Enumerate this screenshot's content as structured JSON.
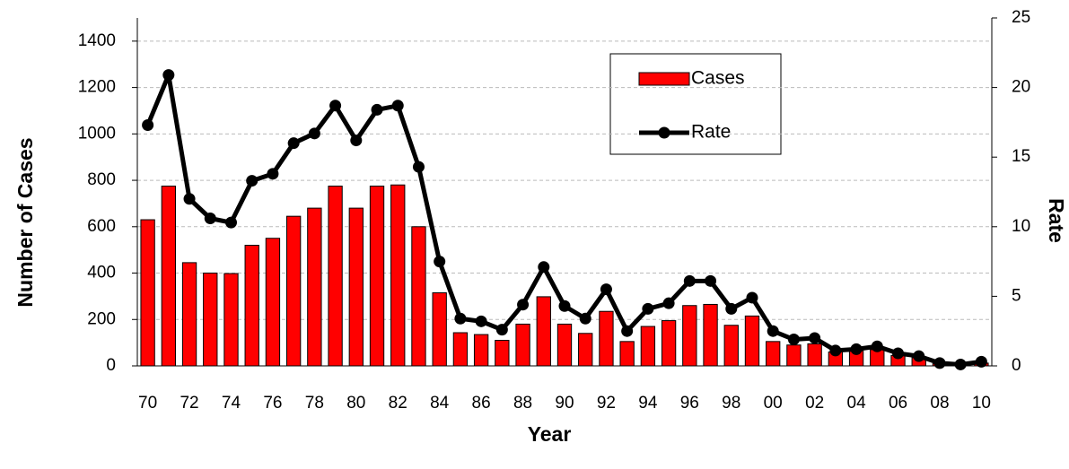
{
  "chart_data": {
    "type": "bar",
    "categories": [
      "70",
      null,
      "72",
      null,
      "74",
      null,
      "76",
      null,
      "78",
      null,
      "80",
      null,
      "82",
      null,
      "84",
      null,
      "86",
      null,
      "88",
      null,
      "90",
      null,
      "92",
      null,
      "94",
      null,
      "96",
      null,
      "98",
      null,
      "00",
      null,
      "02",
      null,
      "04",
      null,
      "06",
      null,
      "08",
      null,
      "10"
    ],
    "series": [
      {
        "name": "Cases",
        "type": "bar",
        "color": "#ff0000",
        "values": [
          630,
          775,
          445,
          400,
          398,
          520,
          550,
          645,
          680,
          775,
          680,
          775,
          780,
          600,
          315,
          143,
          135,
          110,
          180,
          298,
          180,
          140,
          235,
          105,
          170,
          195,
          260,
          265,
          175,
          215,
          105,
          90,
          95,
          60,
          65,
          70,
          45,
          35,
          10,
          8,
          12
        ]
      },
      {
        "name": "Rate",
        "type": "line",
        "color": "#000000",
        "axis": "y2",
        "values": [
          17.3,
          20.9,
          12.0,
          10.6,
          10.3,
          13.3,
          13.8,
          16.0,
          16.7,
          18.7,
          16.2,
          18.4,
          18.7,
          14.3,
          7.5,
          3.4,
          3.2,
          2.6,
          4.4,
          7.1,
          4.3,
          3.4,
          5.5,
          2.5,
          4.1,
          4.5,
          6.1,
          6.1,
          4.1,
          4.9,
          2.5,
          1.9,
          2.0,
          1.1,
          1.2,
          1.4,
          0.9,
          0.7,
          0.2,
          0.1,
          0.3
        ]
      }
    ],
    "ylim": [
      0,
      1500
    ],
    "yticks": [
      0,
      200,
      400,
      600,
      800,
      1000,
      1200,
      1400
    ],
    "y2lim": [
      0,
      25
    ],
    "y2ticks": [
      0,
      5,
      10,
      15,
      20,
      25
    ],
    "y_label": "Number of Cases",
    "y2_label": "Rate",
    "x_label": "Year",
    "grid": true,
    "legend": "upper-right"
  }
}
